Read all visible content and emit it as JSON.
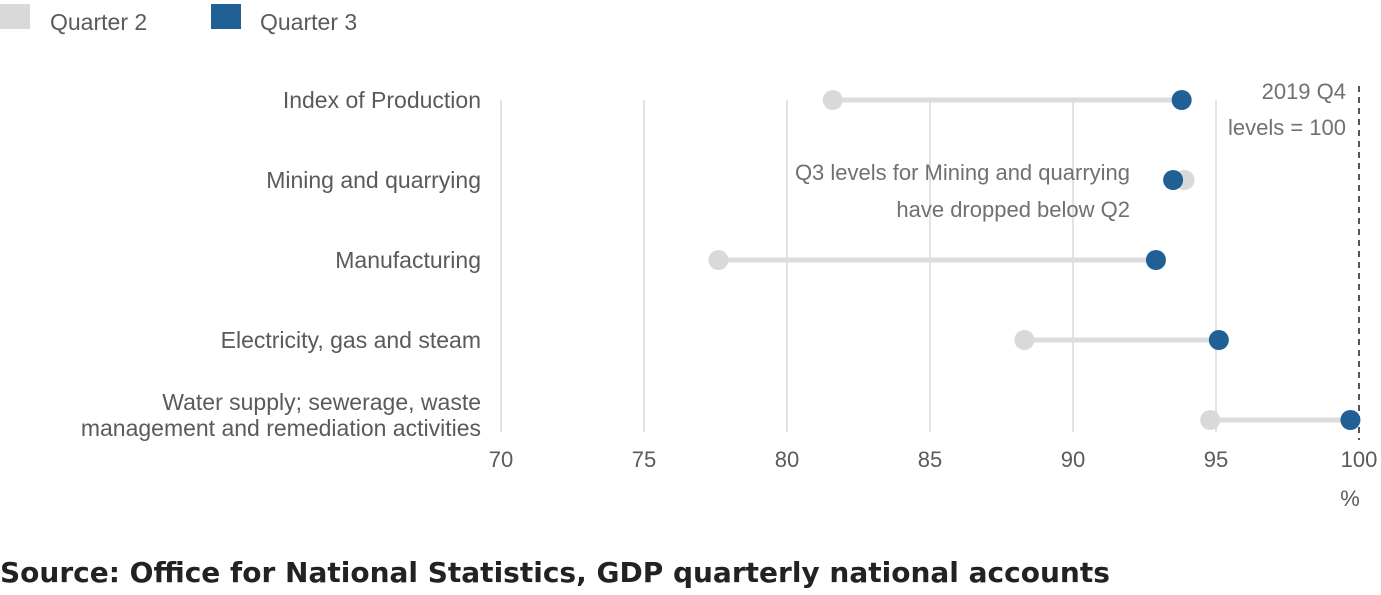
{
  "chart_data": {
    "type": "dumbbell",
    "legend": [
      {
        "name": "Quarter 2",
        "color": "#d9d9d9"
      },
      {
        "name": "Quarter 3",
        "color": "#206095"
      }
    ],
    "categories": [
      [
        "Index of Production"
      ],
      [
        "Mining and quarrying"
      ],
      [
        "Manufacturing"
      ],
      [
        "Electricity, gas and steam"
      ],
      [
        "Water supply; sewerage, waste",
        "management and remediation activities"
      ]
    ],
    "series": [
      {
        "name": "Quarter 2",
        "values": [
          81.6,
          93.9,
          77.6,
          88.3,
          94.8
        ]
      },
      {
        "name": "Quarter 3",
        "values": [
          93.8,
          93.5,
          92.9,
          95.1,
          99.7
        ]
      }
    ],
    "xlim": [
      70,
      100
    ],
    "xticks": [
      "70",
      "75",
      "80",
      "85",
      "90",
      "95",
      "100"
    ],
    "xunit": "%",
    "grid": true,
    "reference_line": {
      "value": 100,
      "label": [
        "2019 Q4",
        "levels = 100"
      ]
    },
    "annotation": [
      "Q3 levels for Mining and quarrying",
      "have dropped below Q2"
    ]
  },
  "source": "Source: Office for National Statistics, GDP quarterly national accounts"
}
